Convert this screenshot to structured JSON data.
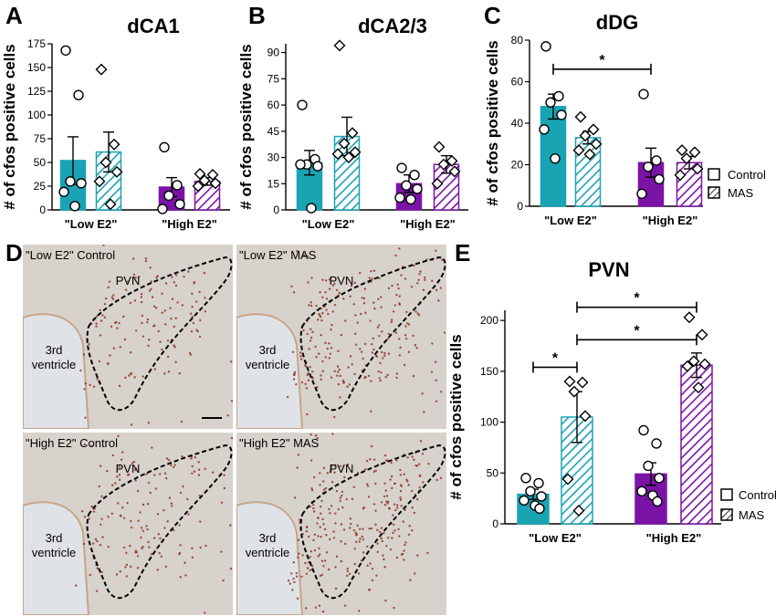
{
  "panel_labels": {
    "A": "A",
    "B": "B",
    "C": "C",
    "D": "D",
    "E": "E"
  },
  "colors": {
    "low": "#1aa3b3",
    "high": "#7b14a6"
  },
  "legend": {
    "control": "Control",
    "mas": "MAS"
  },
  "chart_data": [
    {
      "id": "A",
      "type": "bar",
      "title": "dCA1",
      "ylabel": "# of cfos positive cells",
      "categories": [
        "\"Low E2\"",
        "\"High E2\""
      ],
      "ylim": [
        0,
        175
      ],
      "yticks": [
        0,
        25,
        50,
        75,
        100,
        125,
        150,
        175
      ],
      "series": [
        {
          "name": "Control",
          "pattern": "solid",
          "means": [
            52,
            24
          ],
          "sem": [
            25,
            10
          ],
          "points": [
            [
              168,
              121,
              30,
              28,
              19,
              4
            ],
            [
              66,
              26,
              15,
              6,
              1
            ]
          ]
        },
        {
          "name": "MAS",
          "pattern": "hatched",
          "means": [
            61,
            30
          ],
          "sem": [
            21,
            4
          ],
          "points": [
            [
              148,
              69,
              50,
              40,
              30,
              6
            ],
            [
              38,
              37,
              31,
              28,
              25
            ]
          ]
        }
      ]
    },
    {
      "id": "B",
      "type": "bar",
      "title": "dCA2/3",
      "ylabel": "# of cfos positive cells",
      "categories": [
        "\"Low E2\"",
        "\"High E2\""
      ],
      "ylim": [
        0,
        95
      ],
      "yticks": [
        0,
        15,
        30,
        45,
        60,
        75,
        90
      ],
      "series": [
        {
          "name": "Control",
          "pattern": "solid",
          "means": [
            27,
            15
          ],
          "sem": [
            7,
            5
          ],
          "points": [
            [
              60,
              29,
              26,
              25,
              26,
              1
            ],
            [
              24,
              20,
              14,
              12,
              7,
              6
            ]
          ]
        },
        {
          "name": "MAS",
          "pattern": "hatched",
          "means": [
            42,
            26
          ],
          "sem": [
            11,
            5
          ],
          "points": [
            [
              94,
              44,
              38,
              33,
              32,
              30
            ],
            [
              36,
              28,
              26,
              22,
              15
            ]
          ]
        }
      ]
    },
    {
      "id": "C",
      "type": "bar",
      "title": "dDG",
      "ylabel": "# of cfos positive cells",
      "categories": [
        "\"Low E2\"",
        "\"High E2\""
      ],
      "ylim": [
        0,
        80
      ],
      "yticks": [
        0,
        20,
        40,
        60,
        80
      ],
      "series": [
        {
          "name": "Control",
          "pattern": "solid",
          "means": [
            48,
            21
          ],
          "sem": [
            6,
            7
          ],
          "points": [
            [
              77,
              53,
              50,
              44,
              37,
              23
            ],
            [
              54,
              22,
              19,
              13,
              6
            ]
          ]
        },
        {
          "name": "MAS",
          "pattern": "hatched",
          "means": [
            33,
            21
          ],
          "sem": [
            3,
            3
          ],
          "points": [
            [
              43,
              37,
              34,
              30,
              27,
              25
            ],
            [
              27,
              26,
              23,
              18,
              15
            ]
          ]
        }
      ],
      "significance": [
        {
          "label": "*",
          "y": 66,
          "between": [
            [
              0,
              0
            ],
            [
              1,
              0
            ]
          ]
        }
      ]
    },
    {
      "id": "E",
      "type": "bar",
      "title": "PVN",
      "ylabel": "# of cfos positive cells",
      "categories": [
        "\"Low E2\"",
        "\"High E2\""
      ],
      "ylim": [
        0,
        210
      ],
      "yticks": [
        0,
        50,
        100,
        150,
        200
      ],
      "series": [
        {
          "name": "Control",
          "pattern": "solid",
          "means": [
            29,
            49
          ],
          "sem": [
            5,
            11
          ],
          "points": [
            [
              45,
              40,
              32,
              27,
              23,
              18,
              15
            ],
            [
              92,
              79,
              57,
              45,
              32,
              28,
              22
            ]
          ]
        },
        {
          "name": "MAS",
          "pattern": "hatched",
          "means": [
            105,
            156
          ],
          "sem": [
            25,
            12
          ],
          "points": [
            [
              140,
              139,
              130,
              106,
              44,
              13
            ],
            [
              203,
              186,
              160,
              157,
              155,
              134
            ]
          ]
        }
      ],
      "significance": [
        {
          "label": "*",
          "y": 154,
          "between": [
            [
              0,
              0
            ],
            [
              0,
              1
            ]
          ]
        },
        {
          "label": "*",
          "y": 181,
          "between": [
            [
              0,
              1
            ],
            [
              1,
              1
            ]
          ]
        },
        {
          "label": "*",
          "y": 213,
          "between": [
            [
              0,
              1
            ],
            [
              1,
              1
            ]
          ]
        }
      ]
    }
  ],
  "micrographs": {
    "tiles": [
      {
        "caption": "\"Low E2\" Control",
        "pvn": "PVN",
        "ventricle": "3rd\nventricle",
        "density": 0.3,
        "scale_bar": true
      },
      {
        "caption": "\"Low E2\" MAS",
        "pvn": "PVN",
        "ventricle": "3rd\nventricle",
        "density": 0.7,
        "scale_bar": false
      },
      {
        "caption": "\"High E2\" Control",
        "pvn": "PVN",
        "ventricle": "3rd\nventricle",
        "density": 0.35,
        "scale_bar": false
      },
      {
        "caption": "\"High E2\" MAS",
        "pvn": "PVN",
        "ventricle": "3rd\nventricle",
        "density": 0.85,
        "scale_bar": false
      }
    ]
  }
}
